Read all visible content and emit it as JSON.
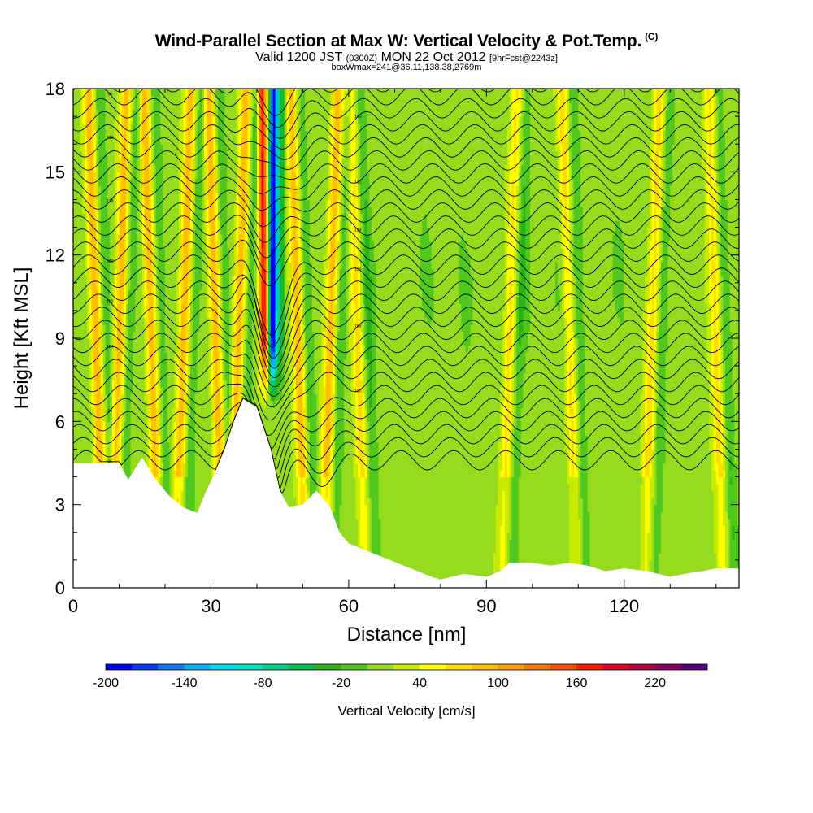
{
  "header": {
    "title": "Wind-Parallel Section at Max W: Vertical Velocity & Pot.Temp.",
    "copyright": "(C)",
    "valid_prefix": "Valid 1200 JST",
    "valid_utc": "(0300Z)",
    "valid_date": "MON 22 Oct 2012",
    "forecast": "[9hrFcst@2243z]",
    "boxwmax": "boxWmax=241@36.11,138.38,2769m"
  },
  "chart_data": {
    "type": "heatmap",
    "xlabel": "Distance [nm]",
    "ylabel": "Height [Kft MSL]",
    "xlim": [
      0,
      145
    ],
    "ylim": [
      0,
      18
    ],
    "x_ticks": [
      0,
      30,
      60,
      90,
      120
    ],
    "y_ticks": [
      0,
      3,
      6,
      9,
      12,
      15,
      18
    ],
    "colorbar": {
      "title": "Vertical Velocity [cm/s]",
      "levels": [
        -200,
        -180,
        -160,
        -140,
        -120,
        -100,
        -80,
        -60,
        -40,
        -20,
        0,
        20,
        40,
        60,
        80,
        100,
        120,
        140,
        160,
        180,
        200,
        220,
        240,
        260
      ],
      "tick_labels": [
        -200,
        -140,
        -80,
        -20,
        40,
        100,
        160,
        220
      ],
      "colors": [
        "#0000ff",
        "#0a3cff",
        "#0f78ff",
        "#00b4ff",
        "#00dcf0",
        "#00e6be",
        "#00d28c",
        "#00be50",
        "#28b414",
        "#50c81e",
        "#96dc1e",
        "#c8eb00",
        "#ffff00",
        "#ffdc00",
        "#ffbe00",
        "#ffa000",
        "#ff7800",
        "#ff5000",
        "#ff1e00",
        "#e6002d",
        "#b90041",
        "#8c0064",
        "#5a0082"
      ]
    },
    "terrain_profile": {
      "x": [
        0,
        10,
        12,
        15,
        18,
        21,
        24,
        27,
        29,
        31,
        33,
        35,
        37,
        40,
        43,
        45,
        47,
        50,
        53,
        56,
        58,
        60,
        63,
        66,
        69,
        72,
        75,
        78,
        80,
        85,
        90,
        93,
        95,
        98,
        100,
        104,
        108,
        112,
        116,
        120,
        125,
        130,
        133,
        137,
        140,
        145
      ],
      "height_kft": [
        4.5,
        4.5,
        3.9,
        4.7,
        3.9,
        3.3,
        2.9,
        2.7,
        3.5,
        4.2,
        5.0,
        6.0,
        6.8,
        6.5,
        5.0,
        3.5,
        2.9,
        3.0,
        3.5,
        2.9,
        2.0,
        1.6,
        1.4,
        1.2,
        1.0,
        0.8,
        0.6,
        0.4,
        0.3,
        0.5,
        0.4,
        0.6,
        0.9,
        0.9,
        0.9,
        0.8,
        0.9,
        0.8,
        0.6,
        0.7,
        0.6,
        0.4,
        0.5,
        0.6,
        0.7,
        0.7
      ]
    },
    "features": {
      "main_updraft_x": 41.5,
      "main_downdraft_x": 43.5,
      "mountain_wave_bands_x": [
        5,
        10,
        17,
        24,
        31,
        36,
        49,
        56,
        62,
        95,
        108,
        126,
        140
      ]
    },
    "isentropes": {
      "count": 30,
      "labels": [
        "96",
        "92",
        "94",
        "100",
        "104",
        "108",
        "112",
        "116",
        "120",
        "124",
        "128",
        "132",
        "136",
        "140"
      ]
    }
  }
}
